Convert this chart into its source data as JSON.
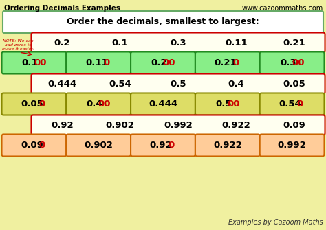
{
  "title_left": "Ordering Decimals Examples",
  "title_right": "www.cazoommaths.com",
  "bg_color": "#f0f0a0",
  "header_text": "Order the decimals, smallest to largest:",
  "note_text": "NOTE: We can\nadd zeros to\nmake it easier.",
  "footer_text": "Examples by Cazoom Maths",
  "rows": [
    {
      "type": "question_box",
      "border_color": "#cc0000",
      "fill_color": "#fffff0",
      "items": [
        {
          "parts": [
            {
              "text": "0.2",
              "color": "#000000"
            }
          ]
        },
        {
          "parts": [
            {
              "text": "0.1",
              "color": "#000000"
            }
          ]
        },
        {
          "parts": [
            {
              "text": "0.3",
              "color": "#000000"
            }
          ]
        },
        {
          "parts": [
            {
              "text": "0.11",
              "color": "#000000"
            }
          ]
        },
        {
          "parts": [
            {
              "text": "0.21",
              "color": "#000000"
            }
          ]
        }
      ]
    },
    {
      "type": "answer_boxes",
      "border_color": "#228B22",
      "fill_color": "#88ee88",
      "items": [
        {
          "parts": [
            {
              "text": "0.1",
              "color": "#000000"
            },
            {
              "text": "00",
              "color": "#cc0000"
            }
          ]
        },
        {
          "parts": [
            {
              "text": "0.11",
              "color": "#000000"
            },
            {
              "text": "0",
              "color": "#cc0000"
            }
          ]
        },
        {
          "parts": [
            {
              "text": "0.2",
              "color": "#000000"
            },
            {
              "text": "00",
              "color": "#cc0000"
            }
          ]
        },
        {
          "parts": [
            {
              "text": "0.21",
              "color": "#000000"
            },
            {
              "text": "0",
              "color": "#cc0000"
            }
          ]
        },
        {
          "parts": [
            {
              "text": "0.3",
              "color": "#000000"
            },
            {
              "text": "00",
              "color": "#cc0000"
            }
          ]
        }
      ]
    },
    {
      "type": "question_box",
      "border_color": "#cc0000",
      "fill_color": "#fffff0",
      "items": [
        {
          "parts": [
            {
              "text": "0.444",
              "color": "#000000"
            }
          ]
        },
        {
          "parts": [
            {
              "text": "0.54",
              "color": "#000000"
            }
          ]
        },
        {
          "parts": [
            {
              "text": "0.5",
              "color": "#000000"
            }
          ]
        },
        {
          "parts": [
            {
              "text": "0.4",
              "color": "#000000"
            }
          ]
        },
        {
          "parts": [
            {
              "text": "0.05",
              "color": "#000000"
            }
          ]
        }
      ]
    },
    {
      "type": "answer_boxes",
      "border_color": "#888800",
      "fill_color": "#dddd66",
      "items": [
        {
          "parts": [
            {
              "text": "0.05",
              "color": "#000000"
            },
            {
              "text": "0",
              "color": "#cc0000"
            }
          ]
        },
        {
          "parts": [
            {
              "text": "0.4",
              "color": "#000000"
            },
            {
              "text": "00",
              "color": "#cc0000"
            }
          ]
        },
        {
          "parts": [
            {
              "text": "0.444",
              "color": "#000000"
            }
          ]
        },
        {
          "parts": [
            {
              "text": "0.5",
              "color": "#000000"
            },
            {
              "text": "00",
              "color": "#cc0000"
            }
          ]
        },
        {
          "parts": [
            {
              "text": "0.54",
              "color": "#000000"
            },
            {
              "text": "0",
              "color": "#cc0000"
            }
          ]
        }
      ]
    },
    {
      "type": "question_box",
      "border_color": "#cc0000",
      "fill_color": "#fffff0",
      "items": [
        {
          "parts": [
            {
              "text": "0.92",
              "color": "#000000"
            }
          ]
        },
        {
          "parts": [
            {
              "text": "0.902",
              "color": "#000000"
            }
          ]
        },
        {
          "parts": [
            {
              "text": "0.992",
              "color": "#000000"
            }
          ]
        },
        {
          "parts": [
            {
              "text": "0.922",
              "color": "#000000"
            }
          ]
        },
        {
          "parts": [
            {
              "text": "0.09",
              "color": "#000000"
            }
          ]
        }
      ]
    },
    {
      "type": "answer_boxes",
      "border_color": "#cc6600",
      "fill_color": "#ffcc99",
      "items": [
        {
          "parts": [
            {
              "text": "0.09",
              "color": "#000000"
            },
            {
              "text": "0",
              "color": "#cc0000"
            }
          ]
        },
        {
          "parts": [
            {
              "text": "0.902",
              "color": "#000000"
            }
          ]
        },
        {
          "parts": [
            {
              "text": "0.92",
              "color": "#000000"
            },
            {
              "text": "0",
              "color": "#cc0000"
            }
          ]
        },
        {
          "parts": [
            {
              "text": "0.922",
              "color": "#000000"
            }
          ]
        },
        {
          "parts": [
            {
              "text": "0.992",
              "color": "#000000"
            }
          ]
        }
      ]
    }
  ]
}
